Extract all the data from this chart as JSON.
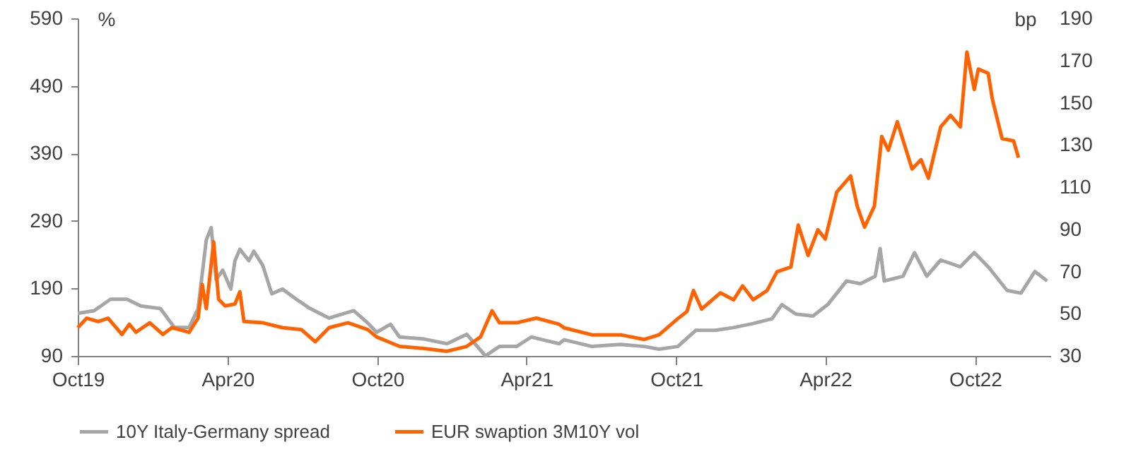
{
  "chart_data": {
    "type": "line",
    "ylabel": "%",
    "y2label": "bp",
    "xlim": [
      "2019-10-01",
      "2023-01-01"
    ],
    "xticks": [
      {
        "value": "2019-10-01",
        "label": "Oct19"
      },
      {
        "value": "2020-04-01",
        "label": "Apr20"
      },
      {
        "value": "2020-10-01",
        "label": "Oct20"
      },
      {
        "value": "2021-04-01",
        "label": "Apr21"
      },
      {
        "value": "2021-10-01",
        "label": "Oct21"
      },
      {
        "value": "2022-04-01",
        "label": "Apr22"
      },
      {
        "value": "2022-10-01",
        "label": "Oct22"
      }
    ],
    "ylim": [
      90,
      590
    ],
    "yticks": [
      90,
      190,
      290,
      390,
      490,
      590
    ],
    "y2lim": [
      30,
      190
    ],
    "y2ticks": [
      30,
      50,
      70,
      90,
      110,
      130,
      150,
      170,
      190
    ],
    "grid": false,
    "legend": "bottom",
    "line_style": "solid",
    "series": [
      {
        "name": "10Y Italy-Germany spread",
        "color": "#a6a6a6",
        "x": [
          "2019-10-01",
          "2019-10-21",
          "2019-11-10",
          "2019-11-30",
          "2019-12-17",
          "2020-01-10",
          "2020-01-27",
          "2020-02-14",
          "2020-02-25",
          "2020-03-06",
          "2020-03-12",
          "2020-03-18",
          "2020-03-26",
          "2020-04-05",
          "2020-04-10",
          "2020-04-16",
          "2020-04-27",
          "2020-05-03",
          "2020-05-14",
          "2020-05-25",
          "2020-06-07",
          "2020-06-24",
          "2020-07-11",
          "2020-08-03",
          "2020-09-02",
          "2020-09-19",
          "2020-09-30",
          "2020-10-17",
          "2020-10-28",
          "2020-11-27",
          "2020-12-25",
          "2021-01-18",
          "2021-02-10",
          "2021-02-27",
          "2021-03-20",
          "2021-04-07",
          "2021-05-11",
          "2021-05-17",
          "2021-06-20",
          "2021-07-25",
          "2021-08-23",
          "2021-09-10",
          "2021-10-03",
          "2021-10-25",
          "2021-11-18",
          "2021-12-10",
          "2022-01-03",
          "2022-01-26",
          "2022-02-07",
          "2022-02-24",
          "2022-03-17",
          "2022-04-04",
          "2022-04-27",
          "2022-05-14",
          "2022-06-01",
          "2022-06-07",
          "2022-06-12",
          "2022-07-05",
          "2022-07-19",
          "2022-08-03",
          "2022-08-20",
          "2022-09-13",
          "2022-09-30",
          "2022-10-17",
          "2022-11-09",
          "2022-11-26",
          "2022-12-13",
          "2022-12-28"
        ],
        "values": [
          153,
          157,
          174,
          174,
          164,
          160,
          132,
          132,
          160,
          262,
          280,
          203,
          217,
          189,
          231,
          248,
          231,
          245,
          224,
          182,
          189,
          174,
          160,
          146,
          157,
          139,
          125,
          137,
          118,
          115,
          108,
          122,
          90,
          104,
          104,
          118,
          108,
          114,
          104,
          107,
          104,
          100,
          104,
          128,
          128,
          132,
          138,
          145,
          166,
          152,
          149,
          166,
          201,
          197,
          208,
          249,
          201,
          208,
          243,
          208,
          232,
          222,
          243,
          222,
          187,
          183,
          215,
          201
        ]
      },
      {
        "name": "EUR swaption 3M10Y vol",
        "color": "#ff6200",
        "axis": "y2",
        "x": [
          "2019-10-01",
          "2019-10-12",
          "2019-10-26",
          "2019-11-07",
          "2019-11-24",
          "2019-12-03",
          "2019-12-11",
          "2019-12-28",
          "2020-01-13",
          "2020-01-24",
          "2020-02-14",
          "2020-02-25",
          "2020-03-01",
          "2020-03-06",
          "2020-03-15",
          "2020-03-21",
          "2020-03-29",
          "2020-04-10",
          "2020-04-16",
          "2020-04-21",
          "2020-05-14",
          "2020-06-07",
          "2020-06-30",
          "2020-07-17",
          "2020-08-03",
          "2020-08-26",
          "2020-09-19",
          "2020-09-30",
          "2020-10-28",
          "2020-11-27",
          "2020-12-25",
          "2021-01-18",
          "2021-02-04",
          "2021-02-18",
          "2021-02-27",
          "2021-03-20",
          "2021-04-13",
          "2021-05-11",
          "2021-05-17",
          "2021-06-20",
          "2021-07-25",
          "2021-08-23",
          "2021-09-10",
          "2021-10-03",
          "2021-10-14",
          "2021-10-22",
          "2021-11-01",
          "2021-11-24",
          "2021-12-10",
          "2021-12-21",
          "2022-01-03",
          "2022-01-20",
          "2022-02-01",
          "2022-02-18",
          "2022-02-27",
          "2022-03-11",
          "2022-03-23",
          "2022-04-01",
          "2022-04-15",
          "2022-05-02",
          "2022-05-10",
          "2022-05-19",
          "2022-05-31",
          "2022-06-09",
          "2022-06-17",
          "2022-06-28",
          "2022-07-16",
          "2022-07-27",
          "2022-08-05",
          "2022-08-20",
          "2022-09-01",
          "2022-09-13",
          "2022-09-21",
          "2022-09-30",
          "2022-10-05",
          "2022-10-17",
          "2022-10-22",
          "2022-11-03",
          "2022-11-17",
          "2022-11-23"
        ],
        "values": [
          43.4,
          47.9,
          46.3,
          47.9,
          40.2,
          45,
          41.2,
          45.7,
          40.2,
          43.4,
          41.2,
          47.9,
          63.9,
          52.4,
          84.1,
          56.9,
          53.7,
          54.6,
          60.4,
          46.3,
          45.7,
          43.4,
          42.5,
          36.7,
          43.4,
          45.7,
          42.5,
          39,
          34.5,
          33.5,
          32.2,
          34.5,
          39,
          51.4,
          45.7,
          45.7,
          47.9,
          45,
          43.3,
          40,
          40,
          37.8,
          40,
          47.7,
          51,
          61,
          52.2,
          59.9,
          56.6,
          63.2,
          56.6,
          61,
          69.9,
          72.1,
          92,
          77.6,
          89.8,
          85.4,
          107.6,
          115.3,
          101,
          91,
          101,
          134,
          127.5,
          141,
          118.6,
          123,
          114.2,
          138.6,
          144,
          138.6,
          174,
          156.3,
          166,
          164,
          151.9,
          133,
          131.9,
          124
        ]
      }
    ]
  }
}
